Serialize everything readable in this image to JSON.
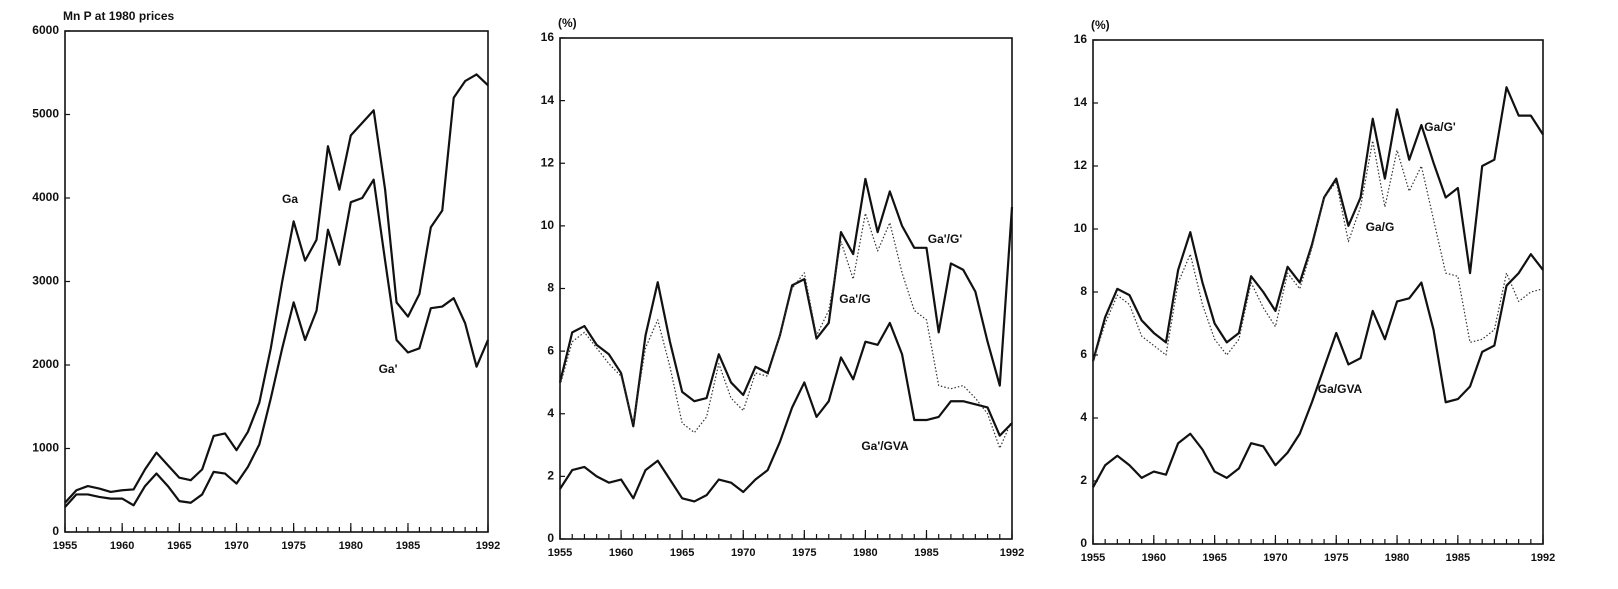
{
  "chart_data": [
    {
      "type": "line",
      "y_label": "Mn P at 1980 prices",
      "x": [
        1955,
        1956,
        1957,
        1958,
        1959,
        1960,
        1961,
        1962,
        1963,
        1964,
        1965,
        1966,
        1967,
        1968,
        1969,
        1970,
        1971,
        1972,
        1973,
        1974,
        1975,
        1976,
        1977,
        1978,
        1979,
        1980,
        1981,
        1982,
        1983,
        1984,
        1985,
        1986,
        1987,
        1988,
        1989,
        1990,
        1991,
        1992
      ],
      "xlim": [
        1955,
        1992
      ],
      "xticks": [
        1955,
        1960,
        1965,
        1970,
        1975,
        1980,
        1985,
        1992
      ],
      "ylim": [
        0,
        6000
      ],
      "yticks": [
        0,
        1000,
        2000,
        3000,
        4000,
        5000,
        6000
      ],
      "series": [
        {
          "name": "Ga",
          "color": "#111111",
          "style": "solid",
          "values": [
            350,
            500,
            550,
            520,
            480,
            500,
            510,
            750,
            950,
            800,
            650,
            620,
            750,
            1150,
            1180,
            980,
            1200,
            1550,
            2200,
            3000,
            3720,
            3250,
            3500,
            4620,
            4100,
            4750,
            4900,
            5050,
            4100,
            2750,
            2580,
            2850,
            3650,
            3850,
            5200,
            5400,
            5480,
            5350
          ]
        },
        {
          "name": "Ga'",
          "color": "#111111",
          "style": "solid",
          "values": [
            300,
            450,
            450,
            420,
            400,
            400,
            320,
            550,
            700,
            550,
            370,
            350,
            450,
            720,
            700,
            580,
            780,
            1050,
            1600,
            2200,
            2750,
            2300,
            2650,
            3620,
            3200,
            3950,
            4000,
            4220,
            3250,
            2300,
            2150,
            2200,
            2680,
            2700,
            2800,
            2500,
            1980,
            2300
          ]
        }
      ]
    },
    {
      "type": "line",
      "y_label": "(%)",
      "x": [
        1955,
        1956,
        1957,
        1958,
        1959,
        1960,
        1961,
        1962,
        1963,
        1964,
        1965,
        1966,
        1967,
        1968,
        1969,
        1970,
        1971,
        1972,
        1973,
        1974,
        1975,
        1976,
        1977,
        1978,
        1979,
        1980,
        1981,
        1982,
        1983,
        1984,
        1985,
        1986,
        1987,
        1988,
        1989,
        1990,
        1991,
        1992
      ],
      "xlim": [
        1955,
        1992
      ],
      "xticks": [
        1955,
        1960,
        1965,
        1970,
        1975,
        1980,
        1985,
        1992
      ],
      "ylim": [
        0,
        16
      ],
      "yticks": [
        0,
        2,
        4,
        6,
        8,
        10,
        12,
        14,
        16
      ],
      "series": [
        {
          "name": "Ga'/G'",
          "color": "#111111",
          "style": "solid",
          "values": [
            5.0,
            6.6,
            6.8,
            6.2,
            5.9,
            5.3,
            3.6,
            6.5,
            8.2,
            6.3,
            4.7,
            4.4,
            4.5,
            5.9,
            5.0,
            4.6,
            5.5,
            5.3,
            6.5,
            8.1,
            8.3,
            6.4,
            6.9,
            9.8,
            9.1,
            11.5,
            9.8,
            11.1,
            10.0,
            9.3,
            9.3,
            6.6,
            8.8,
            8.6,
            7.9,
            6.3,
            4.9,
            10.6
          ]
        },
        {
          "name": "Ga'/G",
          "color": "#333333",
          "style": "dotted",
          "values": [
            4.9,
            6.3,
            6.6,
            6.1,
            5.6,
            5.2,
            3.7,
            6.1,
            7.0,
            5.5,
            3.7,
            3.4,
            3.9,
            5.6,
            4.5,
            4.1,
            5.3,
            5.2,
            6.5,
            8.0,
            8.5,
            6.5,
            7.3,
            9.5,
            8.3,
            10.4,
            9.2,
            10.1,
            8.5,
            7.3,
            7.0,
            4.9,
            4.8,
            4.9,
            4.5,
            4.0,
            2.9,
            3.8
          ]
        },
        {
          "name": "Ga'/GVA",
          "color": "#111111",
          "style": "solid",
          "values": [
            1.6,
            2.2,
            2.3,
            2.0,
            1.8,
            1.9,
            1.3,
            2.2,
            2.5,
            1.9,
            1.3,
            1.2,
            1.4,
            1.9,
            1.8,
            1.5,
            1.9,
            2.2,
            3.1,
            4.2,
            5.0,
            3.9,
            4.4,
            5.8,
            5.1,
            6.3,
            6.2,
            6.9,
            5.9,
            3.8,
            3.8,
            3.9,
            4.4,
            4.4,
            4.3,
            4.2,
            3.3,
            3.7
          ]
        }
      ]
    },
    {
      "type": "line",
      "y_label": "(%)",
      "x": [
        1955,
        1956,
        1957,
        1958,
        1959,
        1960,
        1961,
        1962,
        1963,
        1964,
        1965,
        1966,
        1967,
        1968,
        1969,
        1970,
        1971,
        1972,
        1973,
        1974,
        1975,
        1976,
        1977,
        1978,
        1979,
        1980,
        1981,
        1982,
        1983,
        1984,
        1985,
        1986,
        1987,
        1988,
        1989,
        1990,
        1991,
        1992
      ],
      "xlim": [
        1955,
        1992
      ],
      "xticks": [
        1955,
        1960,
        1965,
        1970,
        1975,
        1980,
        1985,
        1992
      ],
      "ylim": [
        0,
        16
      ],
      "yticks": [
        0,
        2,
        4,
        6,
        8,
        10,
        12,
        14,
        16
      ],
      "series": [
        {
          "name": "Ga/G'",
          "color": "#111111",
          "style": "solid",
          "values": [
            5.8,
            7.2,
            8.1,
            7.9,
            7.1,
            6.7,
            6.4,
            8.7,
            9.9,
            8.3,
            7.0,
            6.4,
            6.7,
            8.5,
            8.0,
            7.4,
            8.8,
            8.3,
            9.5,
            11.0,
            11.6,
            10.1,
            11.0,
            13.5,
            11.6,
            13.8,
            12.2,
            13.3,
            12.1,
            11.0,
            11.3,
            8.6,
            12.0,
            12.2,
            14.5,
            13.6,
            13.6,
            13.0
          ]
        },
        {
          "name": "Ga/G",
          "color": "#333333",
          "style": "dotted",
          "values": [
            5.8,
            7.0,
            7.9,
            7.6,
            6.6,
            6.3,
            6.0,
            8.3,
            9.2,
            7.6,
            6.5,
            6.0,
            6.5,
            8.3,
            7.5,
            6.9,
            8.6,
            8.1,
            9.4,
            11.0,
            11.5,
            9.6,
            10.7,
            12.8,
            10.7,
            12.5,
            11.2,
            12.0,
            10.3,
            8.6,
            8.5,
            6.4,
            6.5,
            6.8,
            8.6,
            7.7,
            8.0,
            8.1
          ]
        },
        {
          "name": "Ga/GVA",
          "color": "#111111",
          "style": "solid",
          "values": [
            1.8,
            2.5,
            2.8,
            2.5,
            2.1,
            2.3,
            2.2,
            3.2,
            3.5,
            3.0,
            2.3,
            2.1,
            2.4,
            3.2,
            3.1,
            2.5,
            2.9,
            3.5,
            4.5,
            5.6,
            6.7,
            5.7,
            5.9,
            7.4,
            6.5,
            7.7,
            7.8,
            8.3,
            6.8,
            4.5,
            4.6,
            5.0,
            6.1,
            6.3,
            8.2,
            8.6,
            9.2,
            8.7
          ]
        }
      ]
    }
  ]
}
